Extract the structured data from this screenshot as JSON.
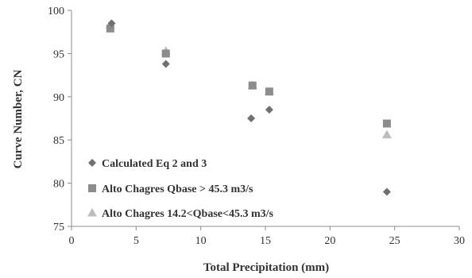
{
  "chart_data": {
    "type": "scatter",
    "title": "",
    "xlabel": "Total Precipitation (mm)",
    "ylabel": "Curve Number, CN",
    "xlim": [
      0,
      30
    ],
    "ylim": [
      75,
      100
    ],
    "xticks": [
      "0",
      "5",
      "10",
      "15",
      "20",
      "25",
      "30"
    ],
    "yticks": [
      "75",
      "80",
      "85",
      "90",
      "95",
      "100"
    ],
    "grid": false,
    "legend_position": "lower-left",
    "series": [
      {
        "name": "Calculated Eq 2 and 3",
        "marker": "diamond",
        "color": "#707070",
        "points": [
          [
            3.1,
            98.5
          ],
          [
            7.3,
            93.8
          ],
          [
            13.9,
            87.5
          ],
          [
            15.3,
            88.5
          ],
          [
            24.4,
            79.0
          ]
        ]
      },
      {
        "name": "Alto Chagres Qbase > 45.3 m3/s",
        "marker": "square",
        "color": "#8c8c8c",
        "points": [
          [
            3.0,
            97.9
          ],
          [
            7.3,
            95.0
          ],
          [
            14.0,
            91.3
          ],
          [
            15.3,
            90.6
          ],
          [
            24.4,
            86.9
          ]
        ]
      },
      {
        "name": "Alto Chagres  14.2<Qbase<45.3 m3/s",
        "marker": "triangle",
        "color": "#bdbdbd",
        "points": [
          [
            3.0,
            98.3
          ],
          [
            7.3,
            95.3
          ],
          [
            14.0,
            91.3
          ],
          [
            15.3,
            90.6
          ],
          [
            24.4,
            85.6
          ]
        ]
      }
    ]
  }
}
